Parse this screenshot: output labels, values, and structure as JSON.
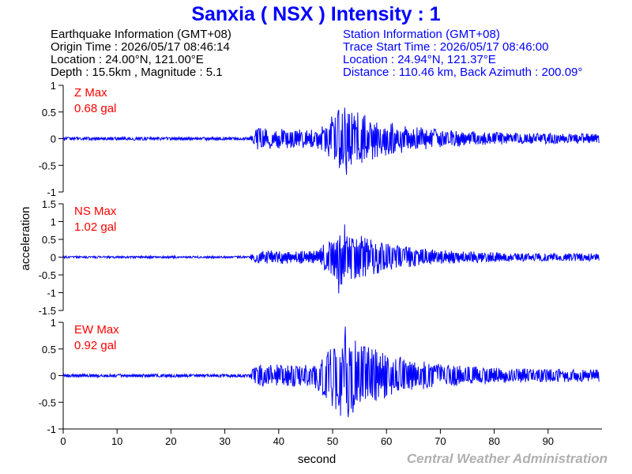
{
  "title": "Sanxia ( NSX ) Intensity : 1",
  "earthquake_info": [
    "Earthquake Information  (GMT+08)",
    "Origin Time : 2026/05/17 08:46:14",
    "Location : 24.00°N, 121.00°E",
    "Depth : 15.5km , Magnitude : 5.1"
  ],
  "station_info": [
    "Station Information  (GMT+08)",
    "Trace Start Time : 2026/05/17 08:46:00",
    "Location : 24.94°N, 121.37°E",
    "Distance : 110.46 km, Back Azimuth : 200.09°"
  ],
  "credit": "Central Weather Administration",
  "colors": {
    "title": "#0000ff",
    "trace": "#0000ff",
    "max_label": "#ff0000",
    "credit": "#b0b0b0"
  },
  "chart_data": {
    "type": "line",
    "xlabel": "second",
    "ylabel": "acceleration",
    "xlim": [
      0,
      100
    ],
    "x_ticks": [
      0,
      10,
      20,
      30,
      40,
      50,
      60,
      70,
      80,
      90
    ],
    "panels": [
      {
        "component": "Z",
        "max_label": "Z Max",
        "max_value": "0.68 gal",
        "ylim": [
          -1,
          1
        ],
        "y_ticks": [
          1,
          0.5,
          0,
          -0.5,
          -1
        ],
        "envelope": {
          "noise": 0.03,
          "p_onset": 34.5,
          "p_amp": 0.18,
          "s_onset": 47,
          "s_amp": 0.48,
          "s_peak": 52,
          "decay": 9.5,
          "tail": 0.06
        },
        "peaks": [
          {
            "t": 52.6,
            "v": -0.68
          },
          {
            "t": 52.2,
            "v": 0.58
          }
        ]
      },
      {
        "component": "NS",
        "max_label": "NS Max",
        "max_value": "1.02 gal",
        "ylim": [
          -1.5,
          1.5
        ],
        "y_ticks": [
          1.5,
          1,
          0.5,
          0,
          -0.5,
          -1,
          -1.5
        ],
        "envelope": {
          "noise": 0.03,
          "p_onset": 34.5,
          "p_amp": 0.18,
          "s_onset": 47,
          "s_amp": 0.68,
          "s_peak": 51.5,
          "decay": 9.5,
          "tail": 0.07
        },
        "peaks": [
          {
            "t": 51.2,
            "v": -1.02
          },
          {
            "t": 52.3,
            "v": 0.92
          }
        ]
      },
      {
        "component": "EW",
        "max_label": "EW Max",
        "max_value": "0.92 gal",
        "ylim": [
          -1,
          1
        ],
        "y_ticks": [
          1,
          0.5,
          0,
          -0.5,
          -1
        ],
        "envelope": {
          "noise": 0.03,
          "p_onset": 34.5,
          "p_amp": 0.2,
          "s_onset": 46.5,
          "s_amp": 0.66,
          "s_peak": 52,
          "decay": 9.5,
          "tail": 0.08
        },
        "peaks": [
          {
            "t": 52.4,
            "v": 0.92
          },
          {
            "t": 52.9,
            "v": -0.78
          }
        ]
      }
    ]
  }
}
